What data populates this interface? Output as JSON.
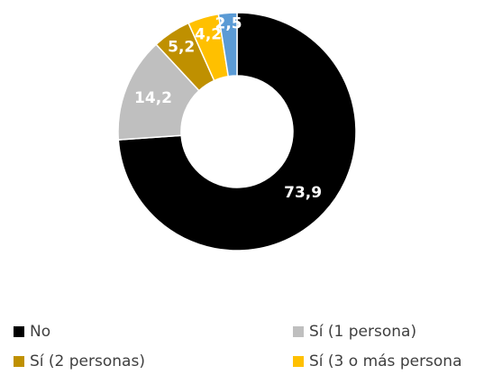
{
  "chart_data": {
    "type": "donut",
    "categories": [
      "No",
      "Sí (1 persona)",
      "Sí (2 personas)",
      "Sí (3 o más persona",
      null
    ],
    "values": [
      73.9,
      14.2,
      5.2,
      4.2,
      2.5
    ],
    "value_labels": [
      "73,9",
      "14,2",
      "5,2",
      "4,2",
      "2,5"
    ],
    "colors": [
      "#000000",
      "#bfbfbf",
      "#bf9000",
      "#ffc000",
      "#5b9bd5"
    ]
  }
}
